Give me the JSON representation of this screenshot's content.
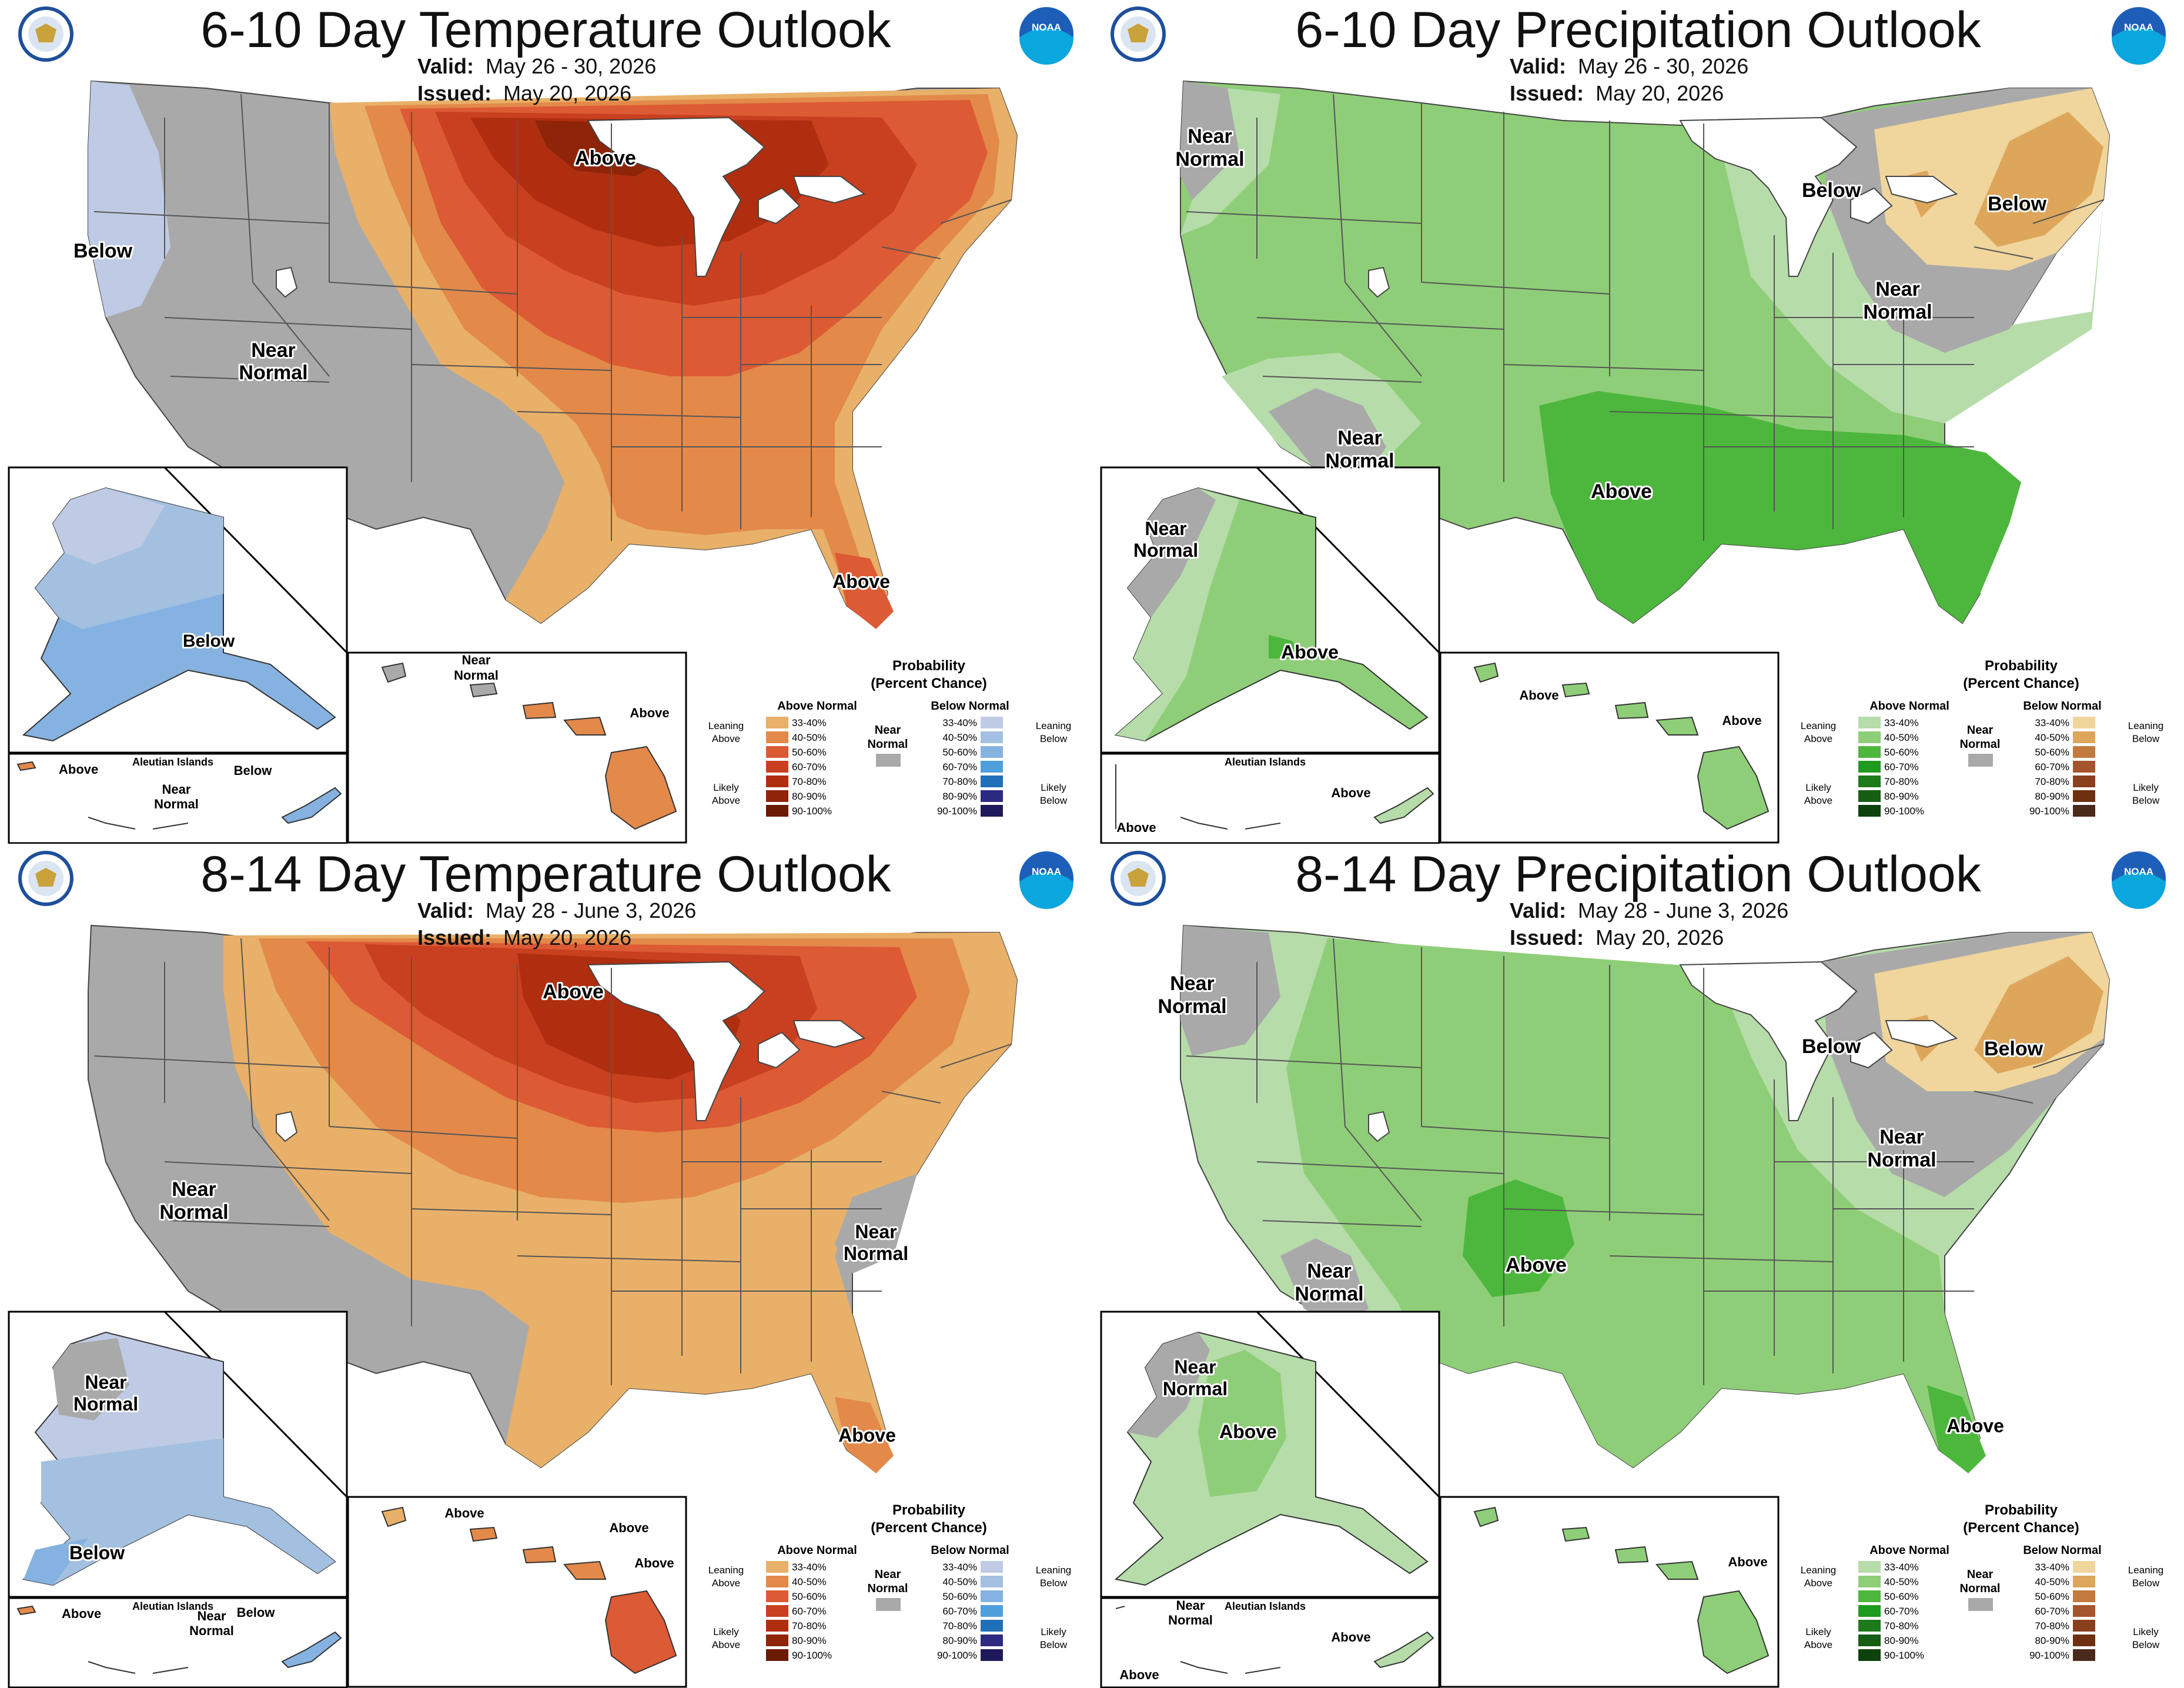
{
  "panels": [
    {
      "title": "6-10 Day Temperature Outlook",
      "valid_label": "Valid:",
      "valid": "May 26 - 30, 2026",
      "issued_label": "Issued:",
      "issued": "May 20, 2026",
      "labels": {
        "conus_a": "Below",
        "conus_b": "Near",
        "conus_b2": "Normal",
        "conus_c": "Above",
        "conus_d": "Above",
        "conus_d2": "",
        "ak_a": "Below",
        "ak_a2": "",
        "ak_b": "",
        "ak_b2": "",
        "aleut_title": "Aleutian Islands",
        "aleut_a": "Above",
        "aleut_b": "Near",
        "aleut_b2": "Normal",
        "aleut_c": "Below",
        "hi_a": "Near",
        "hi_a2": "Normal",
        "hi_b": "Above",
        "hi_c": ""
      }
    },
    {
      "title": "6-10 Day Precipitation Outlook",
      "valid_label": "Valid:",
      "valid": "May 26 - 30, 2026",
      "issued_label": "Issued:",
      "issued": "May 20, 2026",
      "labels": {
        "conus_a": "Near",
        "conus_a2": "Normal",
        "conus_b": "Below",
        "conus_c": "Below",
        "conus_d": "Near",
        "conus_d2": "Normal",
        "conus_e": "Near",
        "conus_e2": "Normal",
        "conus_f": "Above",
        "ak_a": "Near",
        "ak_a2": "Normal",
        "ak_b": "Above",
        "aleut_title": "Aleutian Islands",
        "aleut_a": "Above",
        "aleut_b": "Above",
        "hi_a": "Above",
        "hi_b": "Above"
      }
    },
    {
      "title": "8-14 Day Temperature Outlook",
      "valid_label": "Valid:",
      "valid": "May 28 - June 3, 2026",
      "issued_label": "Issued:",
      "issued": "May 20, 2026",
      "labels": {
        "conus_a": "Above",
        "conus_b": "Near",
        "conus_b2": "Normal",
        "conus_c": "Near",
        "conus_c2": "Normal",
        "conus_d": "Above",
        "ak_a": "Near",
        "ak_a2": "Normal",
        "ak_b": "Below",
        "aleut_title": "Aleutian Islands",
        "aleut_a": "Above",
        "aleut_b": "Near",
        "aleut_b2": "Normal",
        "aleut_c": "Below",
        "hi_a": "Above",
        "hi_b": "Above",
        "hi_c": "Above"
      }
    },
    {
      "title": "8-14 Day Precipitation Outlook",
      "valid_label": "Valid:",
      "valid": "May 28 - June 3, 2026",
      "issued_label": "Issued:",
      "issued": "May 20, 2026",
      "labels": {
        "conus_a": "Near",
        "conus_a2": "Normal",
        "conus_b": "Below",
        "conus_c": "Below",
        "conus_d": "Near",
        "conus_d2": "Normal",
        "conus_e": "Near",
        "conus_e2": "Normal",
        "conus_f": "Above",
        "conus_g": "Above",
        "ak_a": "Near",
        "ak_a2": "Normal",
        "ak_b": "Above",
        "aleut_title": "Aleutian Islands",
        "aleut_a": "Near",
        "aleut_a2": "Normal",
        "aleut_b": "Above",
        "aleut_c": "Above",
        "hi_a": "Above"
      }
    }
  ],
  "legend": {
    "title1": "Probability",
    "title2": "(Percent Chance)",
    "above_head": "Above Normal",
    "below_head": "Below Normal",
    "near": "Near",
    "near2": "Normal",
    "leaning": "Leaning",
    "above_word": "Above",
    "below_word": "Below",
    "likely": "Likely",
    "ranges": [
      "33-40%",
      "40-50%",
      "50-60%",
      "60-70%",
      "70-80%",
      "80-90%",
      "90-100%"
    ]
  },
  "colors": {
    "near_normal": "#a9a9a9",
    "temp_above": [
      "#e8b068",
      "#e3894a",
      "#dc5a34",
      "#c8401f",
      "#b02e10",
      "#8e2408",
      "#6b1a04"
    ],
    "temp_below": [
      "#bfcbe5",
      "#a3c0e0",
      "#85b2e0",
      "#4f9fdc",
      "#1f70b8",
      "#2d2a82",
      "#1e1a5a"
    ],
    "precip_above": [
      "#b6dcaa",
      "#8fce78",
      "#4cb73c",
      "#1f9a1f",
      "#1c7a1a",
      "#165e14",
      "#0e420c"
    ],
    "precip_below": [
      "#f0d59c",
      "#dda65a",
      "#c27a3e",
      "#a5552e",
      "#8a3f1e",
      "#6e3010",
      "#4a2a1a"
    ]
  }
}
